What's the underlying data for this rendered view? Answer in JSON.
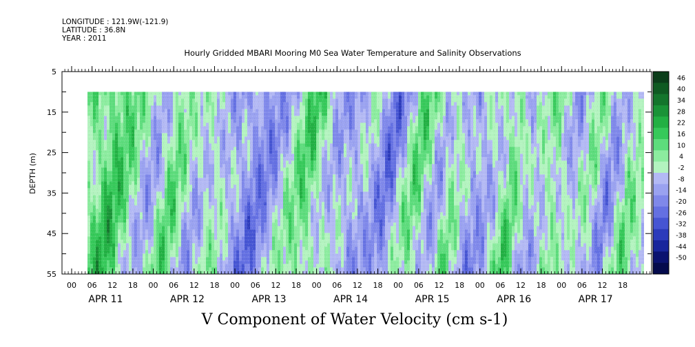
{
  "header": {
    "longitude": "LONGITUDE : 121.9W(-121.9)",
    "latitude": "LATITUDE : 36.8N",
    "year": "YEAR : 2011"
  },
  "chart_data": {
    "type": "heatmap",
    "title": "Hourly Gridded MBARI Mooring M0 Sea Water Temperature and Salinity Observations",
    "xlabel": "V Component of Water Velocity (cm s-1)",
    "ylabel": "DEPTH (m)",
    "ylim": [
      5,
      55
    ],
    "y_ticks": [
      "5",
      "15",
      "25",
      "35",
      "45",
      "55"
    ],
    "x_hour_ticks": [
      "00",
      "06",
      "12",
      "18",
      "00",
      "06",
      "12",
      "18",
      "00",
      "06",
      "12",
      "18",
      "00",
      "06",
      "12",
      "18",
      "00",
      "06",
      "12",
      "18",
      "00",
      "06",
      "12",
      "18",
      "00",
      "06",
      "12",
      "18"
    ],
    "x_day_labels": [
      "APR 11",
      "APR 12",
      "APR 13",
      "APR 14",
      "APR 15",
      "APR 16",
      "APR 17"
    ],
    "data_depth_range": [
      10,
      55
    ],
    "colorbar_levels": [
      "46",
      "40",
      "34",
      "28",
      "22",
      "16",
      "10",
      "4",
      "-2",
      "-8",
      "-14",
      "-20",
      "-26",
      "-32",
      "-38",
      "-44",
      "-50"
    ],
    "colorbar_colors": [
      "#0b3d1a",
      "#0f5a22",
      "#14752c",
      "#1a9337",
      "#22b043",
      "#36c95a",
      "#5ddc7c",
      "#8cec9f",
      "#b3f3bf",
      "#b3b9f4",
      "#9aa2f0",
      "#7f88ea",
      "#6470e2",
      "#4655d3",
      "#2c3bbb",
      "#18259c",
      "#0a1270",
      "#040a4c"
    ],
    "grid": false,
    "legend": "right"
  }
}
